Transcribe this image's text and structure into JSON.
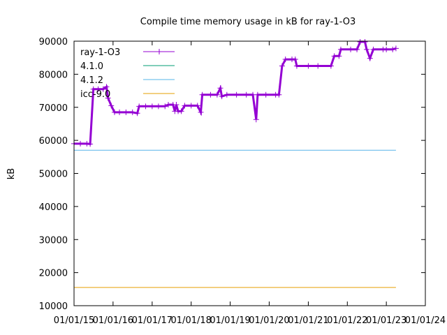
{
  "chart_data": {
    "type": "line",
    "title": "Compile time memory usage in kB for ray-1-O3",
    "xlabel": "",
    "ylabel": "kB",
    "ylim": [
      10000,
      90000
    ],
    "yticks": [
      10000,
      20000,
      30000,
      40000,
      50000,
      60000,
      70000,
      80000,
      90000
    ],
    "xlim": [
      "2015-01-01",
      "2024-01-01"
    ],
    "xticks": [
      "01/01/15",
      "01/01/16",
      "01/01/17",
      "01/01/18",
      "01/01/19",
      "01/01/20",
      "01/01/21",
      "01/01/22",
      "01/01/23",
      "01/01/24"
    ],
    "grid": false,
    "legend_position": "top-left",
    "series": [
      {
        "name": "ray-1-O3",
        "color": "#9400d3",
        "marker": "plus",
        "points": [
          [
            "2015-01-01",
            59000
          ],
          [
            "2015-03-01",
            59000
          ],
          [
            "2015-05-01",
            59000
          ],
          [
            "2015-06-01",
            58900
          ],
          [
            "2015-07-01",
            75500
          ],
          [
            "2015-08-15",
            75500
          ],
          [
            "2015-10-01",
            75500
          ],
          [
            "2015-11-01",
            76200
          ],
          [
            "2015-11-15",
            72800
          ],
          [
            "2015-12-15",
            70500
          ],
          [
            "2016-01-15",
            68500
          ],
          [
            "2016-03-01",
            68500
          ],
          [
            "2016-05-01",
            68500
          ],
          [
            "2016-07-01",
            68500
          ],
          [
            "2016-08-15",
            68200
          ],
          [
            "2016-09-01",
            70300
          ],
          [
            "2016-11-01",
            70300
          ],
          [
            "2017-01-01",
            70300
          ],
          [
            "2017-03-01",
            70300
          ],
          [
            "2017-05-01",
            70300
          ],
          [
            "2017-06-01",
            70800
          ],
          [
            "2017-07-15",
            70800
          ],
          [
            "2017-08-01",
            68800
          ],
          [
            "2017-08-15",
            70800
          ],
          [
            "2017-09-01",
            68800
          ],
          [
            "2017-10-01",
            68800
          ],
          [
            "2017-11-01",
            70500
          ],
          [
            "2018-01-01",
            70500
          ],
          [
            "2018-03-01",
            70500
          ],
          [
            "2018-04-01",
            68500
          ],
          [
            "2018-04-15",
            73800
          ],
          [
            "2018-07-01",
            73800
          ],
          [
            "2018-09-01",
            73800
          ],
          [
            "2018-10-01",
            75800
          ],
          [
            "2018-10-15",
            73300
          ],
          [
            "2018-12-01",
            73800
          ],
          [
            "2019-03-01",
            73800
          ],
          [
            "2019-06-01",
            73800
          ],
          [
            "2019-08-01",
            73800
          ],
          [
            "2019-09-01",
            66300
          ],
          [
            "2019-09-15",
            73800
          ],
          [
            "2019-12-01",
            73800
          ],
          [
            "2020-03-01",
            73800
          ],
          [
            "2020-04-01",
            73800
          ],
          [
            "2020-05-01",
            82500
          ],
          [
            "2020-06-01",
            84500
          ],
          [
            "2020-08-01",
            84500
          ],
          [
            "2020-09-01",
            84500
          ],
          [
            "2020-09-15",
            82500
          ],
          [
            "2021-01-01",
            82500
          ],
          [
            "2021-04-01",
            82500
          ],
          [
            "2021-08-01",
            82500
          ],
          [
            "2021-09-01",
            85500
          ],
          [
            "2021-10-15",
            85500
          ],
          [
            "2021-11-01",
            87500
          ],
          [
            "2022-02-01",
            87500
          ],
          [
            "2022-04-01",
            87500
          ],
          [
            "2022-05-01",
            89800
          ],
          [
            "2022-06-15",
            89800
          ],
          [
            "2022-07-01",
            87500
          ],
          [
            "2022-08-01",
            84800
          ],
          [
            "2022-09-01",
            87500
          ],
          [
            "2022-12-01",
            87500
          ],
          [
            "2023-01-01",
            87500
          ],
          [
            "2023-03-01",
            87500
          ],
          [
            "2023-04-01",
            87800
          ]
        ]
      },
      {
        "name": "4.1.0",
        "color": "#009e73",
        "points": []
      },
      {
        "name": "4.1.2",
        "color": "#56b4e9",
        "points": [
          [
            "2015-01-01",
            57000
          ],
          [
            "2023-04-01",
            57000
          ]
        ]
      },
      {
        "name": "icc-9.0",
        "color": "#e69f00",
        "points": [
          [
            "2015-01-01",
            15500
          ],
          [
            "2023-04-01",
            15500
          ]
        ]
      }
    ]
  }
}
